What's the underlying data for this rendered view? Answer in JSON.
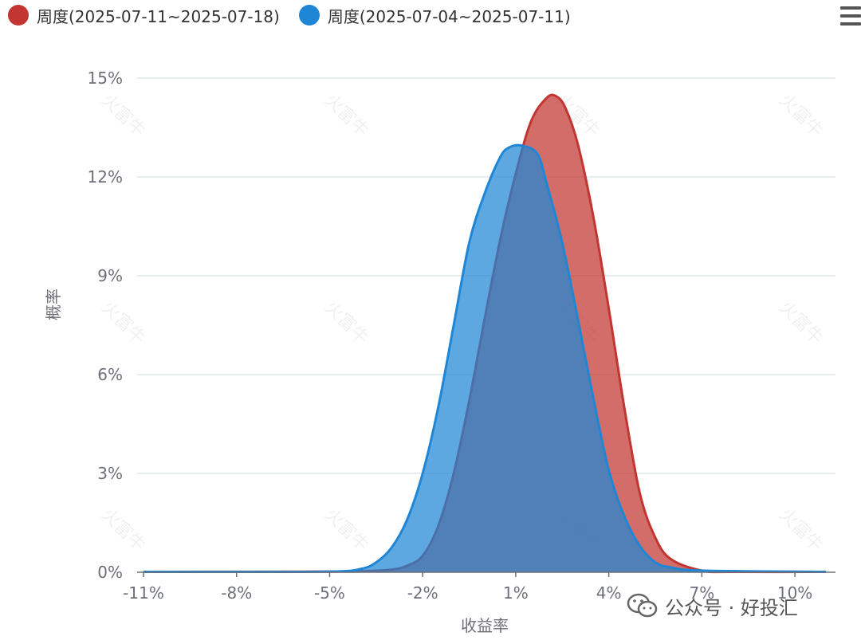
{
  "legend": {
    "items": [
      {
        "label": "周度(2025-07-11~2025-07-18)",
        "color": "#c23531"
      },
      {
        "label": "周度(2025-07-04~2025-07-11)",
        "color": "#1f86d6"
      }
    ]
  },
  "toolbar": {
    "menu_icon": "hamburger-menu-icon"
  },
  "watermark": {
    "text": "火富牛"
  },
  "footer": {
    "source_icon": "wechat-icon",
    "source_label": "公众号 · 好投汇"
  },
  "chart_data": {
    "type": "area",
    "title": "",
    "xlabel": "收益率",
    "ylabel": "概率",
    "xlim": [
      -11,
      11
    ],
    "ylim": [
      0,
      15
    ],
    "x_ticks": [
      -11,
      -8,
      -5,
      -2,
      1,
      4,
      7,
      10
    ],
    "x_tick_labels": [
      "-11%",
      "-8%",
      "-5%",
      "-2%",
      "1%",
      "4%",
      "7%",
      "10%"
    ],
    "y_ticks": [
      0,
      3,
      6,
      9,
      12,
      15
    ],
    "y_tick_labels": [
      "0%",
      "3%",
      "6%",
      "9%",
      "12%",
      "15%"
    ],
    "grid": true,
    "legend_position": "top-left",
    "series": [
      {
        "name": "周度(2025-07-11~2025-07-18)",
        "color": "#c23531",
        "points": [
          [
            -11,
            0
          ],
          [
            -5,
            0.02
          ],
          [
            -4,
            0.03
          ],
          [
            -3,
            0.08
          ],
          [
            -2.5,
            0.2
          ],
          [
            -2,
            0.5
          ],
          [
            -1.5,
            1.4
          ],
          [
            -1,
            3.0
          ],
          [
            -0.5,
            5.2
          ],
          [
            0,
            7.7
          ],
          [
            0.5,
            10.1
          ],
          [
            1,
            12.1
          ],
          [
            1.5,
            13.7
          ],
          [
            2,
            14.4
          ],
          [
            2.3,
            14.45
          ],
          [
            2.6,
            14.1
          ],
          [
            3,
            13.0
          ],
          [
            3.5,
            10.8
          ],
          [
            4,
            8.0
          ],
          [
            4.5,
            5.0
          ],
          [
            5,
            2.4
          ],
          [
            5.5,
            1.05
          ],
          [
            6,
            0.4
          ],
          [
            7,
            0.05
          ],
          [
            8,
            0.01
          ],
          [
            11,
            0
          ]
        ]
      },
      {
        "name": "周度(2025-07-04~2025-07-11)",
        "color": "#1f86d6",
        "points": [
          [
            -11,
            0
          ],
          [
            -9,
            0.01
          ],
          [
            -5,
            0.02
          ],
          [
            -4,
            0.1
          ],
          [
            -3.5,
            0.3
          ],
          [
            -3,
            0.75
          ],
          [
            -2.5,
            1.6
          ],
          [
            -2,
            3.0
          ],
          [
            -1.5,
            5.0
          ],
          [
            -1,
            7.5
          ],
          [
            -0.5,
            10.0
          ],
          [
            0,
            11.5
          ],
          [
            0.5,
            12.6
          ],
          [
            0.8,
            12.9
          ],
          [
            1.2,
            12.95
          ],
          [
            1.7,
            12.7
          ],
          [
            2,
            11.8
          ],
          [
            2.5,
            10.0
          ],
          [
            3,
            7.7
          ],
          [
            3.5,
            5.3
          ],
          [
            4,
            3.1
          ],
          [
            4.5,
            1.7
          ],
          [
            5,
            0.8
          ],
          [
            5.5,
            0.3
          ],
          [
            6,
            0.15
          ],
          [
            7,
            0.05
          ],
          [
            11,
            0
          ]
        ]
      }
    ]
  }
}
